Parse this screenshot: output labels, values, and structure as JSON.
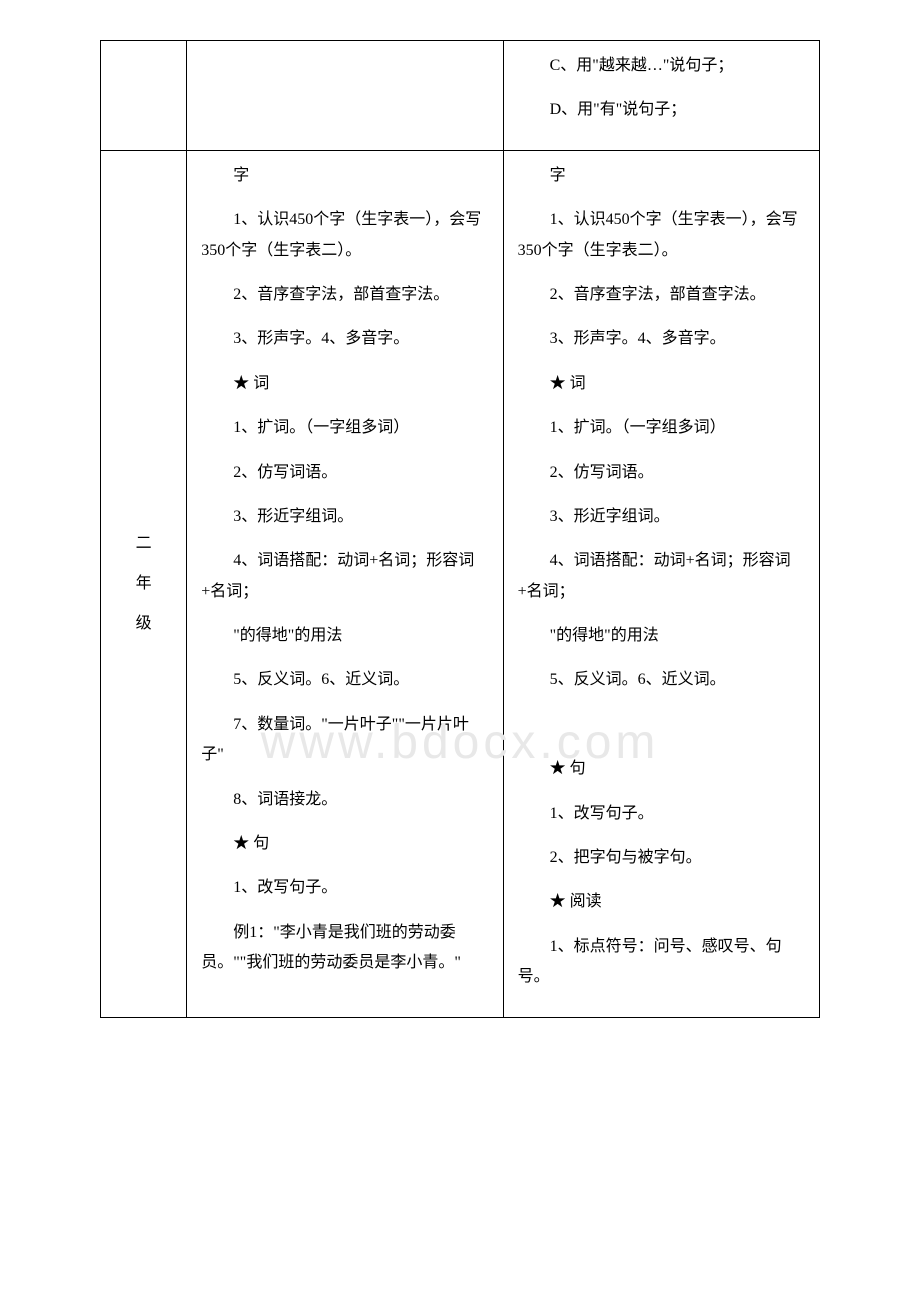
{
  "watermark": "www.bdocx.com",
  "table": {
    "row1": {
      "col1": "",
      "col2": "",
      "col3_paras": [
        "　　C、用\"越来越…\"说句子；",
        "　　D、用\"有\"说句子；"
      ]
    },
    "row2": {
      "grade_chars": [
        "二",
        "年",
        "级"
      ],
      "col2_paras": [
        "　　字",
        "　　1、认识450个字（生字表一），会写350个字（生字表二）。",
        "　　2、音序查字法，部首查字法。",
        "　　3、形声字。4、多音字。",
        "　　★ 词",
        "　　1、扩词。（一字组多词）",
        "　　2、仿写词语。",
        "　　3、形近字组词。",
        "　　4、词语搭配：动词+名词；形容词+名词；",
        "　　\"的得地\"的用法",
        "　　5、反义词。6、近义词。",
        "　　7、数量词。\"一片叶子\"\"一片片叶子\"",
        "　　8、词语接龙。",
        "　　★ 句",
        "　　1、改写句子。",
        "　　例1：\"李小青是我们班的劳动委员。\"\"我们班的劳动委员是李小青。\""
      ],
      "col3_paras": [
        "　　字",
        "　　1、认识450个字（生字表一），会写350个字（生字表二）。",
        "　　2、音序查字法，部首查字法。",
        "　　3、形声字。4、多音字。",
        "　　★ 词",
        "　　1、扩词。（一字组多词）",
        "　　2、仿写词语。",
        "　　3、形近字组词。",
        "　　4、词语搭配：动词+名词；形容词+名词；",
        "　　\"的得地\"的用法",
        "　　5、反义词。6、近义词。",
        "　　",
        "　　★ 句",
        "　　1、改写句子。",
        "　　2、把字句与被字句。",
        "　　★ 阅读",
        "　　1、标点符号：问号、感叹号、句号。"
      ]
    }
  },
  "styles": {
    "font_size": 16,
    "line_height": 1.9,
    "border_color": "#000000",
    "background_color": "#ffffff",
    "watermark_color": "#e8e8e8"
  }
}
